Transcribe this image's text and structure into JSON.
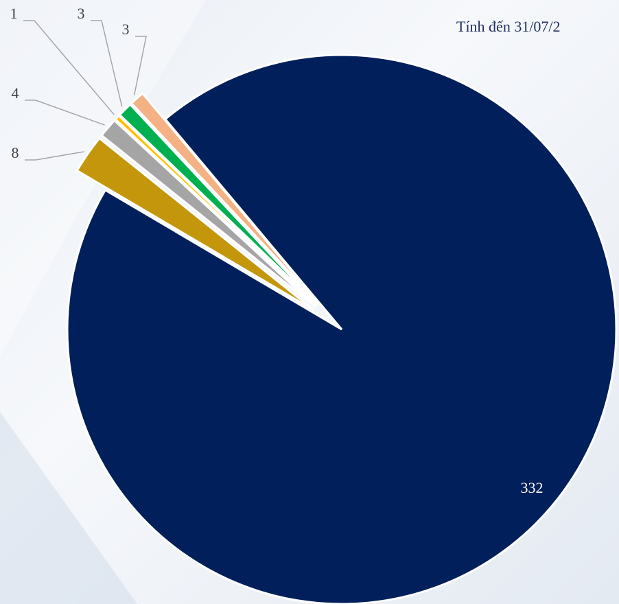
{
  "chart_data": {
    "type": "pie",
    "subtitle": "Tính đến 31/07/2",
    "values": [
      332,
      8,
      4,
      1,
      3,
      3
    ],
    "colors": [
      "#011f5b",
      "#c4960c",
      "#a5a5a5",
      "#ffc000",
      "#00b050",
      "#f4b183"
    ]
  }
}
